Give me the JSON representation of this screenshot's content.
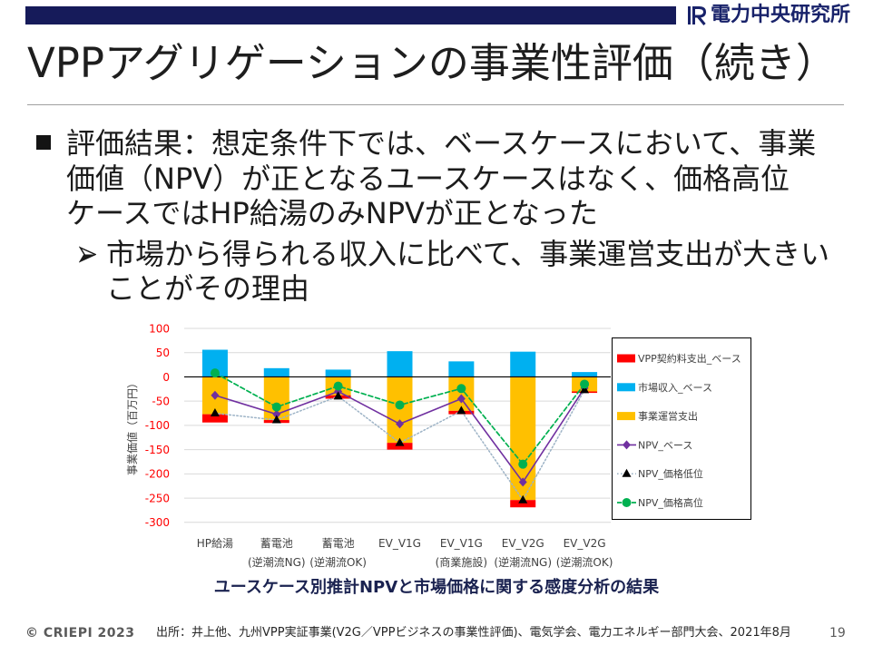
{
  "header": {
    "org_name": "電力中央研究所"
  },
  "title": "VPPアグリゲーションの事業性評価（続き）",
  "icons": {
    "logo": "criepi-logo-icon",
    "bullet": "square-bullet-icon",
    "sub_bullet": "arrow-bullet-icon"
  },
  "bullet": {
    "lines": [
      "評価結果：想定条件下では、ベースケースにおいて、事業",
      "価値（NPV）が正となるユースケースはなく、価格高位",
      "ケースではHP給湯のみNPVが正となった"
    ],
    "sub_lines": [
      "市場から得られる収入に比べて、事業運営支出が大きい",
      "ことがその理由"
    ]
  },
  "chart_data": {
    "type": "bar",
    "stacked": true,
    "categories": [
      "HP給湯",
      "蓄電池\n(逆潮流NG)",
      "蓄電池\n(逆潮流OK)",
      "EV_V1G",
      "EV_V1G\n(商業施設)",
      "EV_V2G\n(逆潮流NG)",
      "EV_V2G\n(逆潮流OK)"
    ],
    "ylabel": "事業価値（百万円）",
    "ylim": [
      -300,
      100
    ],
    "yticks": [
      100,
      50,
      0,
      -50,
      -100,
      -150,
      -200,
      -250,
      -300
    ],
    "grid": true,
    "legend": "right",
    "series": [
      {
        "name": "VPP契約料支出_ベース",
        "type": "bar",
        "color": "#FF0000",
        "values": [
          -17,
          -6,
          -7,
          -14,
          -7,
          -15,
          -3
        ]
      },
      {
        "name": "市場収入_ベース",
        "type": "bar",
        "color": "#00B0F0",
        "values": [
          56,
          18,
          15,
          53,
          32,
          52,
          10
        ]
      },
      {
        "name": "事業運営支出",
        "type": "bar",
        "color": "#FFC000",
        "values": [
          -77,
          -89,
          -38,
          -136,
          -70,
          -254,
          -30
        ]
      },
      {
        "name": "NPV_ベース",
        "type": "line",
        "color": "#7030A0",
        "values": [
          -38,
          -77,
          -30,
          -97,
          -45,
          -217,
          -23
        ]
      },
      {
        "name": "NPV_価格低位",
        "type": "line",
        "color": "#000000",
        "line_color": "#9DB3C6",
        "values": [
          -75,
          -89,
          -40,
          -136,
          -70,
          -254,
          -27
        ]
      },
      {
        "name": "NPV_価格高位",
        "type": "line",
        "color": "#00B050",
        "values": [
          8,
          -62,
          -19,
          -58,
          -24,
          -180,
          -15
        ]
      }
    ]
  },
  "caption": "ユースケース別推計NPVと市場価格に関する感度分析の結果",
  "footer": {
    "copyright": "© CRIEPI 2023",
    "source": "出所：井上他、九州VPP実証事業(V2G／VPPビジネスの事業性評価)、電気学会、電力エネルギー部門大会、2021年8月",
    "page_number": "19"
  },
  "colors": {
    "header_bar": "#161B5A",
    "logo": "#18226A",
    "caption": "#1A2250",
    "tick_label": "#FF0000"
  }
}
